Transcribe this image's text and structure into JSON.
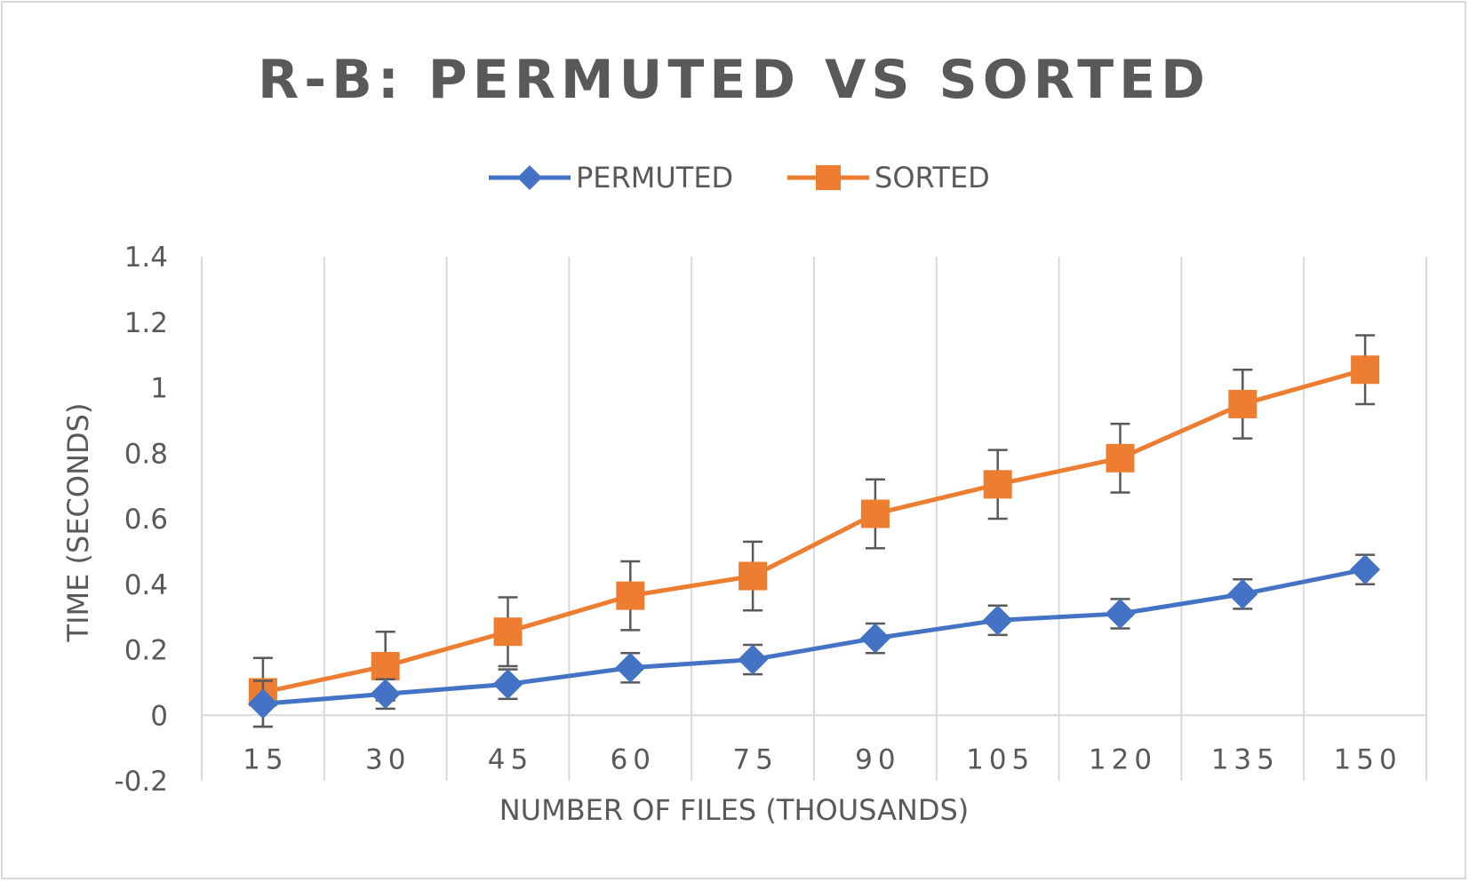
{
  "chart_data": {
    "type": "line",
    "title": "R-B: PERMUTED VS SORTED",
    "xlabel": "NUMBER OF FILES (THOUSANDS)",
    "ylabel": "TIME (SECONDS)",
    "categories": [
      "15",
      "30",
      "45",
      "60",
      "75",
      "90",
      "105",
      "120",
      "135",
      "150"
    ],
    "ylim": [
      -0.2,
      1.4
    ],
    "yticks": [
      -0.2,
      0,
      0.2,
      0.4,
      0.6,
      0.8,
      1,
      1.2,
      1.4
    ],
    "ytick_labels": [
      "-0.2",
      "0",
      "0.2",
      "0.4",
      "0.6",
      "0.8",
      "1",
      "1.2",
      "1.4"
    ],
    "grid": "vertical",
    "legend_position": "top-center",
    "series": [
      {
        "name": "PERMUTED",
        "color": "#4472c4",
        "marker": "diamond",
        "values": [
          0.035,
          0.065,
          0.095,
          0.145,
          0.17,
          0.235,
          0.29,
          0.31,
          0.37,
          0.445
        ],
        "error": [
          0.07,
          0.045,
          0.045,
          0.045,
          0.045,
          0.045,
          0.045,
          0.045,
          0.045,
          0.045
        ]
      },
      {
        "name": "SORTED",
        "color": "#ed7d31",
        "marker": "square",
        "values": [
          0.07,
          0.15,
          0.255,
          0.365,
          0.425,
          0.615,
          0.705,
          0.785,
          0.95,
          1.055
        ],
        "error": [
          0.105,
          0.105,
          0.105,
          0.105,
          0.105,
          0.105,
          0.105,
          0.105,
          0.105,
          0.105
        ]
      }
    ]
  }
}
